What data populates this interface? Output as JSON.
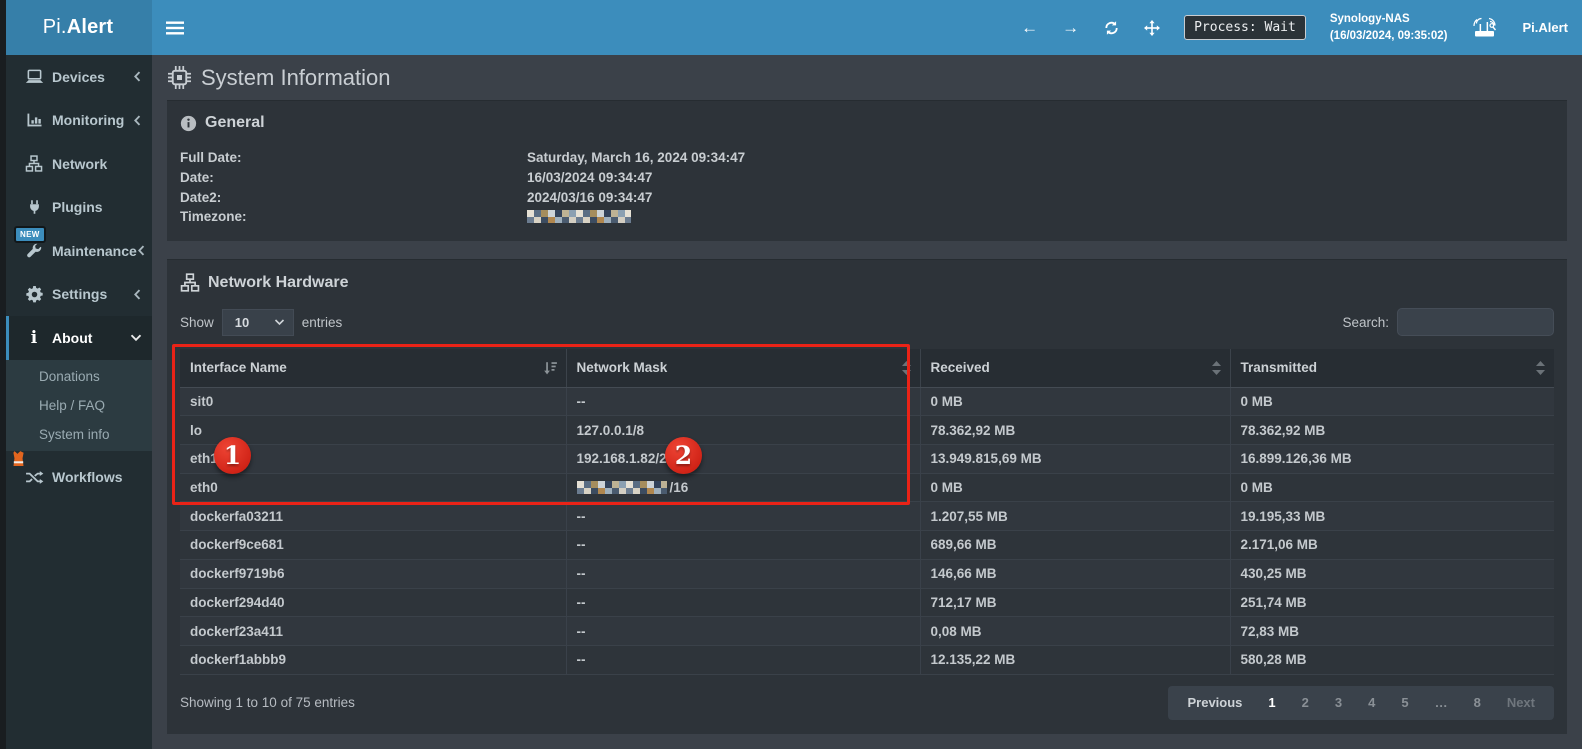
{
  "app": {
    "logo_pi": "Pi.",
    "logo_alert": "Alert"
  },
  "topbar": {
    "process_badge": "Process: Wait",
    "device_name": "Synology-NAS",
    "device_time": "(16/03/2024, 09:35:02)",
    "brand": "Pi.Alert"
  },
  "sidebar": {
    "items": [
      {
        "label": "Devices",
        "icon": "laptop-icon",
        "chevron": "left"
      },
      {
        "label": "Monitoring",
        "icon": "chart-icon",
        "chevron": "left"
      },
      {
        "label": "Network",
        "icon": "sitemap-icon"
      },
      {
        "label": "Plugins",
        "icon": "plug-icon"
      },
      {
        "label": "Maintenance",
        "icon": "wrench-icon",
        "chevron": "left",
        "badge": "NEW"
      },
      {
        "label": "Settings",
        "icon": "gear-icon",
        "chevron": "left"
      },
      {
        "label": "About",
        "icon": "info-icon",
        "chevron": "down",
        "active": true
      }
    ],
    "about_submenu": [
      {
        "label": "Donations"
      },
      {
        "label": "Help / FAQ"
      },
      {
        "label": "System info"
      }
    ],
    "workflows": {
      "label": "Workflows",
      "icon": "shuffle-icon",
      "badge_icon": "safety-vest-icon"
    }
  },
  "page": {
    "title": "System Information"
  },
  "general": {
    "title": "General",
    "fields": [
      {
        "label": "Full Date:",
        "value": "Saturday, March 16, 2024 09:34:47"
      },
      {
        "label": "Date:",
        "value": "16/03/2024 09:34:47"
      },
      {
        "label": "Date2:",
        "value": "2024/03/16 09:34:47"
      },
      {
        "label": "Timezone:",
        "value": "",
        "redacted": true
      }
    ]
  },
  "network_hardware": {
    "title": "Network Hardware",
    "show_label": "Show",
    "page_size": "10",
    "entries_label": "entries",
    "search_label": "Search:",
    "search_value": "",
    "table": {
      "columns": [
        "Interface Name",
        "Network Mask",
        "Received",
        "Transmitted"
      ],
      "rows": [
        {
          "name": "sit0",
          "mask": "--",
          "received": "0 MB",
          "transmitted": "0 MB"
        },
        {
          "name": "lo",
          "mask": "127.0.0.1/8",
          "received": "78.362,92 MB",
          "transmitted": "78.362,92 MB"
        },
        {
          "name": "eth1",
          "mask": "192.168.1.82/24",
          "received": "13.949.815,69 MB",
          "transmitted": "16.899.126,36 MB"
        },
        {
          "name": "eth0",
          "mask": "/16",
          "mask_redacted": true,
          "received": "0 MB",
          "transmitted": "0 MB"
        },
        {
          "name": "dockerfa03211",
          "mask": "--",
          "received": "1.207,55 MB",
          "transmitted": "19.195,33 MB"
        },
        {
          "name": "dockerf9ce681",
          "mask": "--",
          "received": "689,66 MB",
          "transmitted": "2.171,06 MB"
        },
        {
          "name": "dockerf9719b6",
          "mask": "--",
          "received": "146,66 MB",
          "transmitted": "430,25 MB"
        },
        {
          "name": "dockerf294d40",
          "mask": "--",
          "received": "712,17 MB",
          "transmitted": "251,74 MB"
        },
        {
          "name": "dockerf23a411",
          "mask": "--",
          "received": "0,08 MB",
          "transmitted": "72,83 MB"
        },
        {
          "name": "dockerf1abbb9",
          "mask": "--",
          "received": "12.135,22 MB",
          "transmitted": "580,28 MB"
        }
      ]
    },
    "footer": {
      "showing": "Showing 1 to 10 of 75 entries"
    },
    "pagination": [
      {
        "label": "Previous",
        "state": "default"
      },
      {
        "label": "1",
        "state": "active"
      },
      {
        "label": "2"
      },
      {
        "label": "3"
      },
      {
        "label": "4"
      },
      {
        "label": "5"
      },
      {
        "label": "…"
      },
      {
        "label": "8"
      },
      {
        "label": "Next",
        "state": "muted"
      }
    ]
  },
  "annotations": {
    "marker1": "1",
    "marker2": "2"
  },
  "icons": {
    "hamburger-icon": "three-bars",
    "back-icon": "←",
    "forward-icon": "→",
    "refresh-icon": "circular-arrows",
    "move-icon": "four-way-arrows",
    "router-icon": "wifi-router",
    "laptop-icon": "laptop",
    "chart-icon": "bar-chart",
    "sitemap-icon": "network-tree",
    "plug-icon": "power-plug",
    "wrench-icon": "wrench",
    "gear-icon": "gear",
    "info-icon": "i",
    "shuffle-icon": "crossed-arrows",
    "safety-vest-icon": "orange-vest",
    "chip-icon": "microchip",
    "info-circle-icon": "i-in-circle",
    "sort-desc-icon": "sort-amount-desc",
    "sort-icon": "sort-up-down"
  },
  "colors": {
    "accent": "#3c8dbc",
    "logo_bg": "#367fa9",
    "sidebar_bg": "#222d32",
    "panel_bg": "#2d3339",
    "annotation_red": "#ea2317",
    "badge_new": "#3c8dbc"
  }
}
